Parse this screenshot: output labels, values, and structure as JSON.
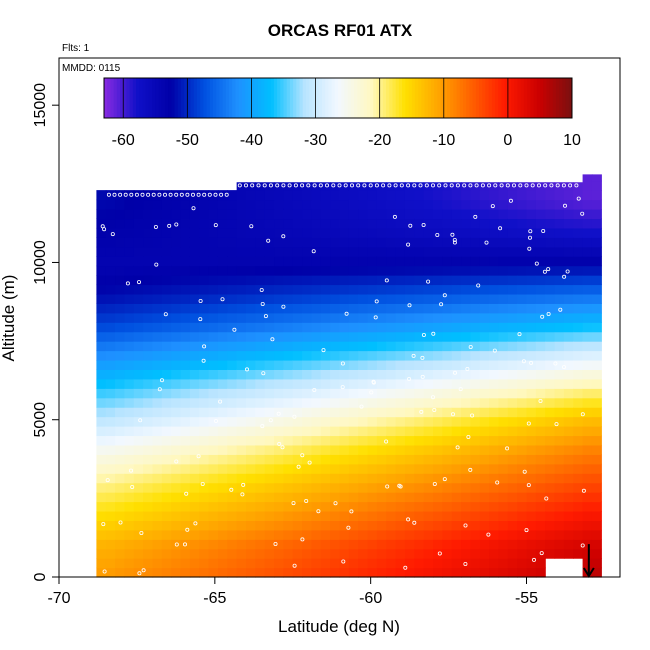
{
  "chart_data": {
    "type": "heatmap",
    "title": "ORCAS RF01 ATX",
    "notes": {
      "flights": "Flts: 1",
      "date": "MMDD: 0115"
    },
    "xlabel": "Latitude (deg N)",
    "ylabel": "Altitude (m)",
    "xlim": [
      -70,
      -52
    ],
    "ylim": [
      0,
      16500
    ],
    "x_ticks": [
      -70,
      -65,
      -60,
      -55
    ],
    "x_tick_labels": [
      "-70",
      "-65",
      "-60",
      "-55"
    ],
    "y_ticks": [
      0,
      5000,
      10000,
      15000
    ],
    "y_tick_labels": [
      "0",
      "5000",
      "10000",
      "15000"
    ],
    "colorbar": {
      "min": -63,
      "max": 10,
      "ticks": [
        -60,
        -50,
        -40,
        -30,
        -20,
        -10,
        0,
        10
      ],
      "tick_labels": [
        "-60",
        "-50",
        "-40",
        "-30",
        "-20",
        "-10",
        "0",
        "10"
      ],
      "palette": [
        "#8a2be2",
        "#1010c8",
        "#0000a8",
        "#0050e0",
        "#1e90ff",
        "#00bfff",
        "#b8e4ff",
        "#f2f8ff",
        "#fff8c0",
        "#ffe000",
        "#ffa500",
        "#ff6000",
        "#ff1a00",
        "#cc0000",
        "#7a1010"
      ]
    },
    "data_extent": {
      "lat_min": -68.8,
      "lat_max": -52.9,
      "alt_min": 0,
      "alt_max": 12300
    },
    "temperature_profile": {
      "altitude_m": [
        0,
        1000,
        2000,
        3000,
        4000,
        5000,
        6000,
        7000,
        8000,
        9000,
        10000,
        11000,
        12000,
        12300
      ],
      "south_lat_-68.5_degC": [
        -10,
        -12,
        -16,
        -20,
        -25,
        -31,
        -36,
        -42,
        -48,
        -52,
        -54,
        -53,
        -52,
        -52
      ],
      "north_lat_-53_degC": [
        6,
        4,
        0,
        -4,
        -8,
        -13,
        -20,
        -28,
        -37,
        -45,
        -53,
        -58,
        -61,
        -61
      ]
    },
    "flight_end_marker": {
      "lat": -53.0,
      "alt": 600
    }
  }
}
